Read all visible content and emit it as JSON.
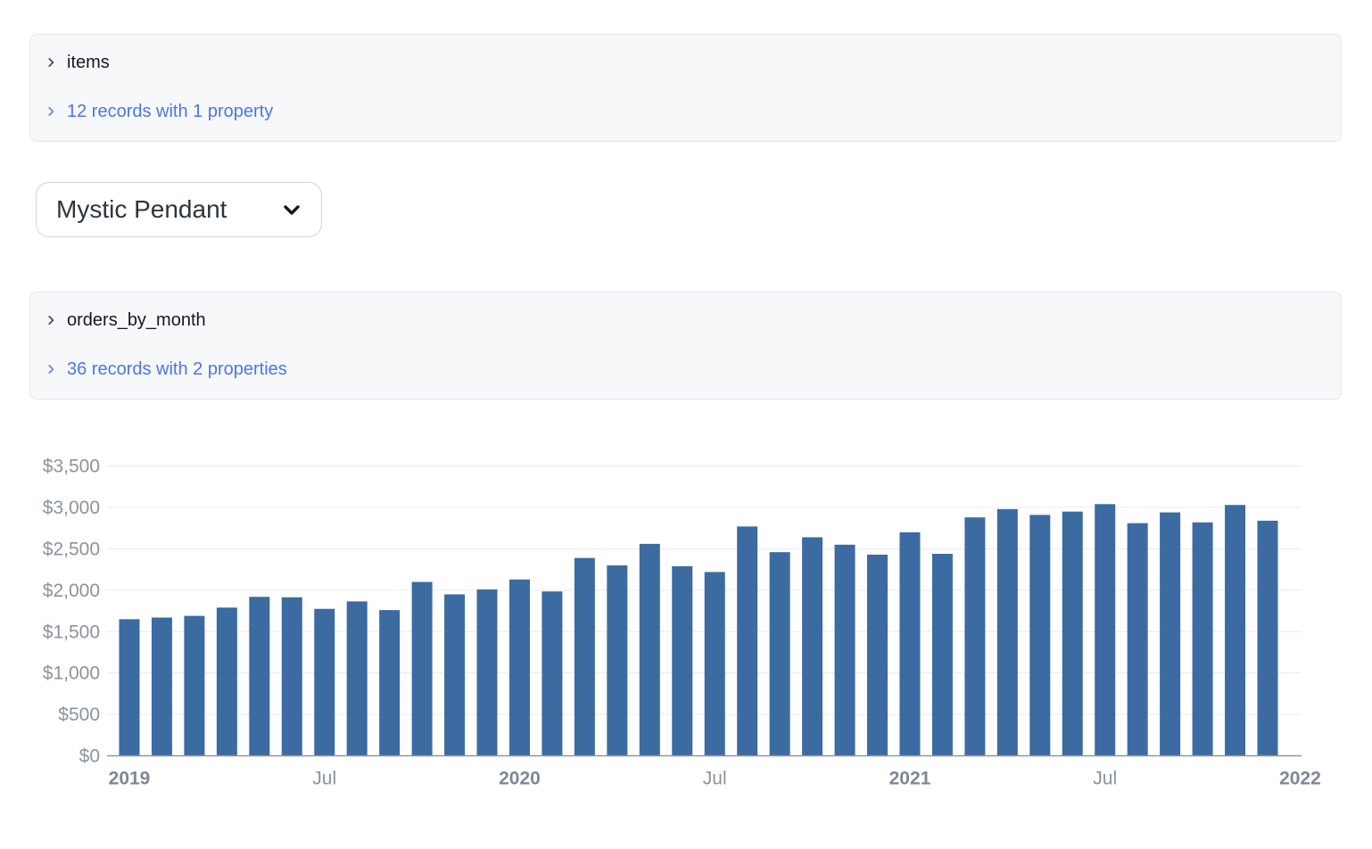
{
  "panels": [
    {
      "title": "items",
      "summary": "12 records with 1 property"
    },
    {
      "title": "orders_by_month",
      "summary": "36 records with 2 properties"
    }
  ],
  "dropdown": {
    "value": "Mystic Pendant"
  },
  "colors": {
    "link_blue": "#4a76e8",
    "bar_fill": "#3b6ba1",
    "grid_line": "#e8e9ed",
    "axis_line": "#8f96a0",
    "axis_label": "#8a92a0",
    "axis_label_bold": "#7f8796",
    "panel_bg": "#f7f8fa",
    "panel_border": "#e4e6ea",
    "text_dark": "#15181e"
  },
  "chart_data": {
    "type": "bar",
    "title": "",
    "xlabel": "",
    "ylabel": "",
    "legend": "none",
    "grid": true,
    "ylim": [
      0,
      3500
    ],
    "categories": [
      "2019-01",
      "2019-02",
      "2019-03",
      "2019-04",
      "2019-05",
      "2019-06",
      "2019-07",
      "2019-08",
      "2019-09",
      "2019-10",
      "2019-11",
      "2019-12",
      "2020-01",
      "2020-02",
      "2020-03",
      "2020-04",
      "2020-05",
      "2020-06",
      "2020-07",
      "2020-08",
      "2020-09",
      "2020-10",
      "2020-11",
      "2020-12",
      "2021-01",
      "2021-02",
      "2021-03",
      "2021-04",
      "2021-05",
      "2021-06",
      "2021-07",
      "2021-08",
      "2021-09",
      "2021-10",
      "2021-11",
      "2021-12"
    ],
    "values": [
      1650,
      1670,
      1690,
      1790,
      1920,
      1915,
      1775,
      1865,
      1760,
      2100,
      1950,
      2010,
      2130,
      1985,
      2390,
      2300,
      2560,
      2290,
      2220,
      2770,
      2460,
      2640,
      2550,
      2430,
      2700,
      2440,
      2880,
      2980,
      2910,
      2950,
      3040,
      2810,
      2940,
      2820,
      3030,
      2840
    ],
    "y_ticks": [
      {
        "value": 0,
        "label": "$0"
      },
      {
        "value": 500,
        "label": "$500"
      },
      {
        "value": 1000,
        "label": "$1,000"
      },
      {
        "value": 1500,
        "label": "$1,500"
      },
      {
        "value": 2000,
        "label": "$2,000"
      },
      {
        "value": 2500,
        "label": "$2,500"
      },
      {
        "value": 3000,
        "label": "$3,000"
      },
      {
        "value": 3500,
        "label": "$3,500"
      }
    ],
    "x_ticks": [
      {
        "index": 0,
        "label": "2019",
        "bold": true
      },
      {
        "index": 6,
        "label": "Jul",
        "bold": false
      },
      {
        "index": 12,
        "label": "2020",
        "bold": true
      },
      {
        "index": 18,
        "label": "Jul",
        "bold": false
      },
      {
        "index": 24,
        "label": "2021",
        "bold": true
      },
      {
        "index": 30,
        "label": "Jul",
        "bold": false
      },
      {
        "index": 36,
        "label": "2022",
        "bold": true
      }
    ]
  }
}
